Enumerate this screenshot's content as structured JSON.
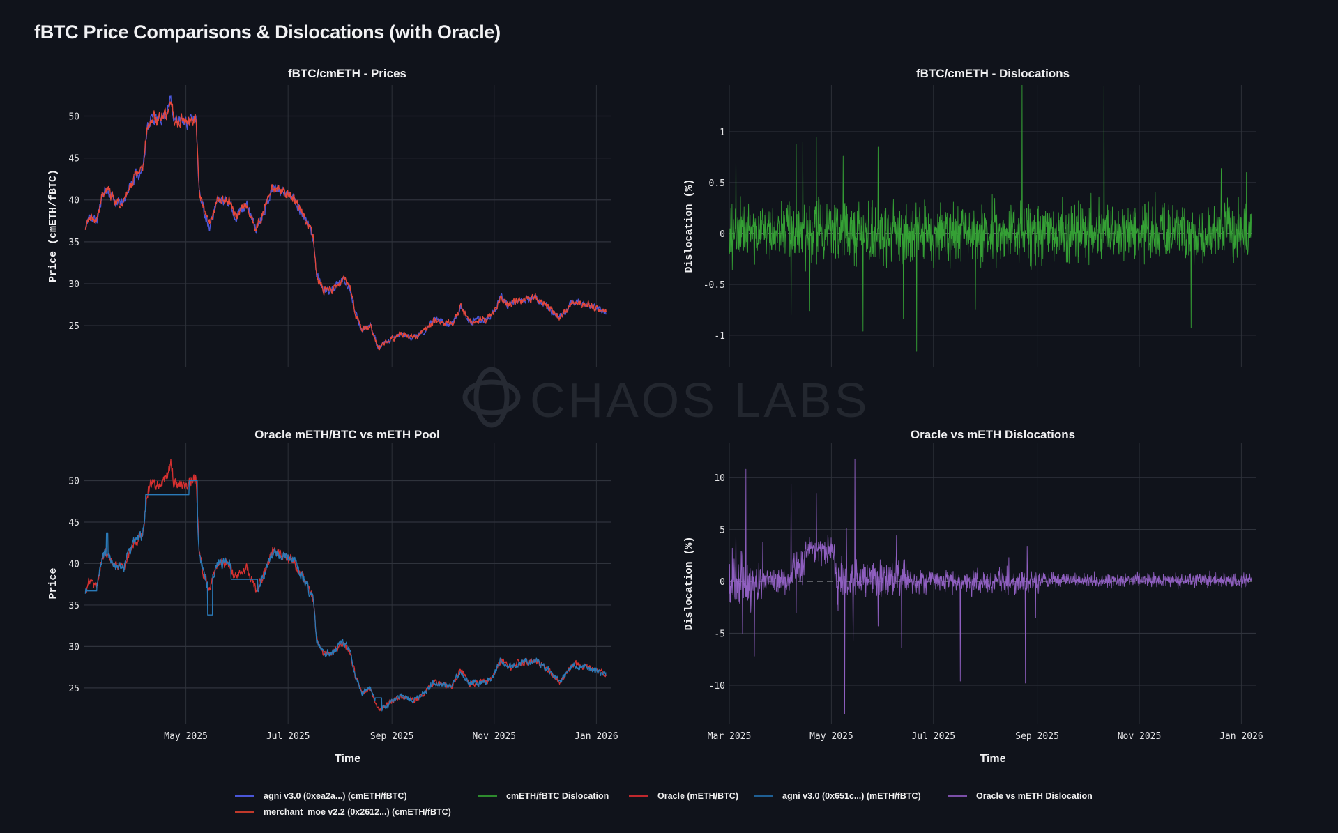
{
  "title": "fBTC Price Comparisons & Dislocations (with Oracle)",
  "watermark": "CHAOS LABS",
  "legend": [
    {
      "label": "agni v3.0 (0xea2a...) (cmETH/fBTC)",
      "color": "#4a56d8"
    },
    {
      "label": "cmETH/fBTC Dislocation",
      "color": "#2e8b2e"
    },
    {
      "label": "Oracle (mETH/BTC)",
      "color": "#c0282d"
    },
    {
      "label": "agni v3.0 (0x651c...) (mETH/fBTC)",
      "color": "#1f5f94"
    },
    {
      "label": "Oracle vs mETH Dislocation",
      "color": "#7b4fa8"
    },
    {
      "label": "merchant_moe v2.2 (0x2612...) (cmETH/fBTC)",
      "color": "#c0392b"
    }
  ],
  "chart_data": [
    {
      "type": "line",
      "title": "fBTC/cmETH - Prices",
      "ylabel": "Price (cmETH/fBTC)",
      "xlabel": "",
      "xrange": [
        "2025-03-01",
        "2026-01-10"
      ],
      "yrange": [
        20.1,
        53.7
      ],
      "grid": true,
      "yticks": [
        25,
        30,
        35,
        40,
        45,
        50
      ],
      "xticks": [
        {
          "date": "2025-05-01",
          "label": ""
        },
        {
          "date": "2025-07-01",
          "label": ""
        },
        {
          "date": "2025-09-01",
          "label": ""
        },
        {
          "date": "2025-11-01",
          "label": ""
        },
        {
          "date": "2026-01-01",
          "label": ""
        }
      ],
      "series": [
        {
          "name": "agni v3.0 (0xea2a...) (cmETH/fBTC)",
          "color": "#4a56d8",
          "ref": "price"
        },
        {
          "name": "merchant_moe v2.2 (0x2612...) (cmETH/fBTC)",
          "color": "#e5483a",
          "ref": "price"
        }
      ],
      "price": [
        [
          "2025-03-02",
          36.5
        ],
        [
          "2025-03-04",
          38
        ],
        [
          "2025-03-09",
          37.5
        ],
        [
          "2025-03-12",
          40.5
        ],
        [
          "2025-03-14",
          41.3
        ],
        [
          "2025-03-20",
          39.8
        ],
        [
          "2025-03-25",
          39.6
        ],
        [
          "2025-03-27",
          41
        ],
        [
          "2025-04-01",
          42.8
        ],
        [
          "2025-04-05",
          43.5
        ],
        [
          "2025-04-08",
          48.5
        ],
        [
          "2025-04-10",
          49.8
        ],
        [
          "2025-04-15",
          49.5
        ],
        [
          "2025-04-20",
          50.5
        ],
        [
          "2025-04-22",
          52.5
        ],
        [
          "2025-04-24",
          49.5
        ],
        [
          "2025-05-02",
          49.3
        ],
        [
          "2025-05-07",
          50
        ],
        [
          "2025-05-09",
          41
        ],
        [
          "2025-05-12",
          38.5
        ],
        [
          "2025-05-15",
          37
        ],
        [
          "2025-05-20",
          40
        ],
        [
          "2025-05-27",
          40
        ],
        [
          "2025-05-30",
          38
        ],
        [
          "2025-06-06",
          39.5
        ],
        [
          "2025-06-12",
          36.5
        ],
        [
          "2025-06-17",
          39
        ],
        [
          "2025-06-22",
          41.5
        ],
        [
          "2025-06-27",
          41.2
        ],
        [
          "2025-07-04",
          40.3
        ],
        [
          "2025-07-12",
          37.5
        ],
        [
          "2025-07-16",
          35.5
        ],
        [
          "2025-07-18",
          31
        ],
        [
          "2025-07-22",
          29.2
        ],
        [
          "2025-07-27",
          29.2
        ],
        [
          "2025-08-03",
          30.5
        ],
        [
          "2025-08-07",
          29.5
        ],
        [
          "2025-08-10",
          26.5
        ],
        [
          "2025-08-14",
          24.5
        ],
        [
          "2025-08-19",
          25
        ],
        [
          "2025-08-24",
          22.3
        ],
        [
          "2025-08-29",
          23
        ],
        [
          "2025-09-06",
          24
        ],
        [
          "2025-09-14",
          23.5
        ],
        [
          "2025-09-21",
          24.5
        ],
        [
          "2025-09-26",
          25.7
        ],
        [
          "2025-10-07",
          25.2
        ],
        [
          "2025-10-12",
          27.2
        ],
        [
          "2025-10-17",
          25.5
        ],
        [
          "2025-10-27",
          25.7
        ],
        [
          "2025-11-01",
          26.5
        ],
        [
          "2025-11-05",
          28.5
        ],
        [
          "2025-11-09",
          27.5
        ],
        [
          "2025-11-16",
          28
        ],
        [
          "2025-11-26",
          28.3
        ],
        [
          "2025-12-04",
          27
        ],
        [
          "2025-12-10",
          25.8
        ],
        [
          "2025-12-18",
          27.8
        ],
        [
          "2025-12-27",
          27.5
        ],
        [
          "2026-01-04",
          26.8
        ],
        [
          "2026-01-07",
          26.6
        ]
      ]
    },
    {
      "type": "line",
      "title": "fBTC/cmETH - Dislocations",
      "ylabel": "Dislocation (%)",
      "xlabel": "",
      "xrange": [
        "2025-03-01",
        "2026-01-10"
      ],
      "yrange": [
        -1.31,
        1.46
      ],
      "grid": true,
      "zero_line": "dashed",
      "yticks": [
        -1,
        -0.5,
        0,
        0.5,
        1
      ],
      "xticks": [
        {
          "date": "2025-03-01",
          "label": ""
        },
        {
          "date": "2025-05-01",
          "label": ""
        },
        {
          "date": "2025-07-01",
          "label": ""
        },
        {
          "date": "2025-09-01",
          "label": ""
        },
        {
          "date": "2025-11-01",
          "label": ""
        },
        {
          "date": "2026-01-01",
          "label": ""
        }
      ],
      "series": [
        {
          "name": "cmETH/fBTC Dislocation",
          "color": "#35a035"
        }
      ],
      "typical_range": [
        -0.4,
        0.45
      ],
      "spikes": [
        [
          "2025-03-05",
          0.8
        ],
        [
          "2025-04-07",
          -0.8
        ],
        [
          "2025-04-10",
          0.88
        ],
        [
          "2025-04-14",
          0.9
        ],
        [
          "2025-04-18",
          -0.76
        ],
        [
          "2025-04-22",
          0.95
        ],
        [
          "2025-05-08",
          0.76
        ],
        [
          "2025-05-20",
          -0.96
        ],
        [
          "2025-05-29",
          0.85
        ],
        [
          "2025-06-13",
          -0.84
        ],
        [
          "2025-06-21",
          -1.16
        ],
        [
          "2025-07-26",
          -0.75
        ],
        [
          "2025-08-23",
          1.48
        ],
        [
          "2025-10-11",
          1.45
        ],
        [
          "2025-12-02",
          -0.93
        ],
        [
          "2025-12-20",
          0.64
        ],
        [
          "2026-01-04",
          0.6
        ]
      ],
      "end": "2026-01-07"
    },
    {
      "type": "line",
      "title": "Oracle mETH/BTC vs mETH Pool",
      "ylabel": "Price",
      "xlabel": "Time",
      "xrange": [
        "2025-03-01",
        "2026-01-10"
      ],
      "yrange": [
        20.7,
        54.5
      ],
      "grid": true,
      "yticks": [
        25,
        30,
        35,
        40,
        45,
        50
      ],
      "xticks": [
        {
          "date": "2025-05-01",
          "label": "May 2025"
        },
        {
          "date": "2025-07-01",
          "label": "Jul 2025"
        },
        {
          "date": "2025-09-01",
          "label": "Sep 2025"
        },
        {
          "date": "2025-11-01",
          "label": "Nov 2025"
        },
        {
          "date": "2026-01-01",
          "label": "Jan 2026"
        }
      ],
      "series": [
        {
          "name": "Oracle (mETH/BTC)",
          "color": "#d63030",
          "ref": "price"
        },
        {
          "name": "agni v3.0 (0x651c...) (mETH/fBTC)",
          "color": "#2a7ab8",
          "ref": "price",
          "flat_segments": [
            [
              "2025-03-03",
              "2025-03-09",
              36.7
            ],
            [
              "2025-04-07",
              "2025-05-03",
              48.3
            ],
            [
              "2025-05-03",
              "2025-05-08",
              50
            ],
            [
              "2025-05-14",
              "2025-05-17",
              33.8
            ],
            [
              "2025-05-28",
              "2025-06-13",
              38.1
            ],
            [
              "2025-08-22",
              "2025-08-26",
              23.8
            ]
          ],
          "spikes": [
            [
              "2025-03-15",
              43.7
            ]
          ]
        }
      ]
    },
    {
      "type": "line",
      "title": "Oracle vs mETH Dislocations",
      "ylabel": "Dislocation (%)",
      "xlabel": "Time",
      "xrange": [
        "2025-03-01",
        "2026-01-10"
      ],
      "yrange": [
        -13.7,
        13.3
      ],
      "grid": true,
      "zero_line": "dashed",
      "yticks": [
        -10,
        -5,
        0,
        5,
        10
      ],
      "xticks": [
        {
          "date": "2025-03-01",
          "label": "Mar 2025"
        },
        {
          "date": "2025-05-01",
          "label": "May 2025"
        },
        {
          "date": "2025-07-01",
          "label": "Jul 2025"
        },
        {
          "date": "2025-09-01",
          "label": "Sep 2025"
        },
        {
          "date": "2025-11-01",
          "label": "Nov 2025"
        },
        {
          "date": "2026-01-01",
          "label": "Jan 2026"
        }
      ],
      "series": [
        {
          "name": "Oracle vs mETH Dislocation",
          "color": "#8f5fc0"
        }
      ],
      "regimes": [
        {
          "from": "2025-03-01",
          "to": "2025-03-21",
          "offset": 0,
          "amp": 2.2
        },
        {
          "from": "2025-03-21",
          "to": "2025-04-07",
          "offset": 0.2,
          "amp": 1.0
        },
        {
          "from": "2025-04-07",
          "to": "2025-04-15",
          "offset": 1.5,
          "amp": 1.5
        },
        {
          "from": "2025-04-15",
          "to": "2025-05-03",
          "offset": 3,
          "amp": 1.0
        },
        {
          "from": "2025-05-03",
          "to": "2025-06-15",
          "offset": 0.3,
          "amp": 1.5
        },
        {
          "from": "2025-06-15",
          "to": "2025-09-05",
          "offset": 0,
          "amp": 0.9
        },
        {
          "from": "2025-09-05",
          "to": "2026-01-07",
          "offset": 0.1,
          "amp": 0.55
        }
      ],
      "spikes": [
        [
          "2025-03-05",
          4.7
        ],
        [
          "2025-03-09",
          -5
        ],
        [
          "2025-03-11",
          10.8
        ],
        [
          "2025-03-16",
          -7.2
        ],
        [
          "2025-03-21",
          3.8
        ],
        [
          "2025-04-07",
          9.4
        ],
        [
          "2025-04-10",
          -3
        ],
        [
          "2025-04-22",
          8.5
        ],
        [
          "2025-05-05",
          -2.8
        ],
        [
          "2025-05-09",
          -12.8
        ],
        [
          "2025-05-10",
          5.1
        ],
        [
          "2025-05-14",
          -5.7
        ],
        [
          "2025-05-15",
          11.8
        ],
        [
          "2025-05-29",
          -4.3
        ],
        [
          "2025-06-09",
          4.4
        ],
        [
          "2025-06-12",
          -6.4
        ],
        [
          "2025-07-17",
          -9.6
        ],
        [
          "2025-08-15",
          2.3
        ],
        [
          "2025-08-25",
          -9.8
        ],
        [
          "2025-08-26",
          3.4
        ],
        [
          "2025-08-31",
          -3.5
        ]
      ],
      "end": "2026-01-07"
    }
  ]
}
